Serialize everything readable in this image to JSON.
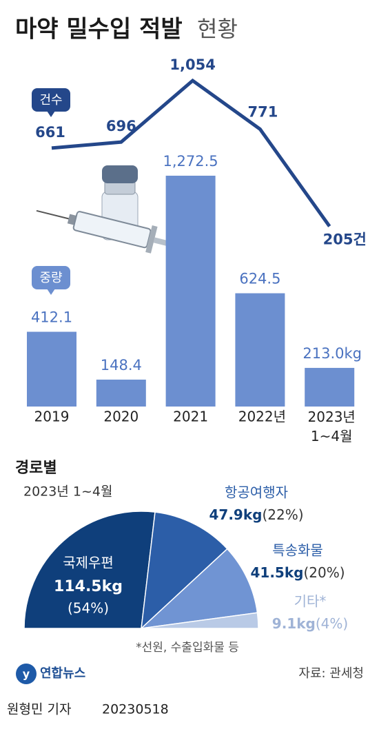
{
  "header": {
    "title": "마약 밀수입 적발",
    "title_suffix": "현황"
  },
  "chart_data": [
    {
      "type": "bar",
      "categories": [
        "2019",
        "2020",
        "2021",
        "2022년",
        "2023년 1~4월"
      ],
      "series": [
        {
          "name": "건수",
          "type": "line",
          "color": "#24478a",
          "values": [
            661,
            696,
            1054,
            771,
            205
          ],
          "value_labels": [
            "661",
            "696",
            "1,054",
            "771",
            "205건"
          ]
        },
        {
          "name": "중량",
          "type": "bar",
          "color": "#6c8fd0",
          "values": [
            412.1,
            148.4,
            1272.5,
            624.5,
            213.0
          ],
          "value_labels": [
            "412.1",
            "148.4",
            "1,272.5",
            "624.5",
            "213.0kg"
          ]
        }
      ]
    },
    {
      "type": "pie",
      "half": true,
      "title": "경로별",
      "subtitle": "2023년 1~4월",
      "categories": [
        "국제우편",
        "항공여행자",
        "특송화물",
        "기타*"
      ],
      "values": [
        114.5,
        47.9,
        41.5,
        9.1
      ],
      "value_labels": [
        "114.5kg",
        "47.9kg",
        "41.5kg",
        "9.1kg"
      ],
      "percent_labels": [
        "(54%)",
        "(22%)",
        "(20%)",
        "(4%)"
      ],
      "colors": [
        "#0f3f7b",
        "#2c5ea8",
        "#7094d3",
        "#b9cae6"
      ],
      "note": "*선원, 수출입화물 등"
    }
  ],
  "footer": {
    "brand": "연합뉴스",
    "source": "자료: 관세청",
    "reporter": "원형민 기자",
    "date": "20230518"
  }
}
